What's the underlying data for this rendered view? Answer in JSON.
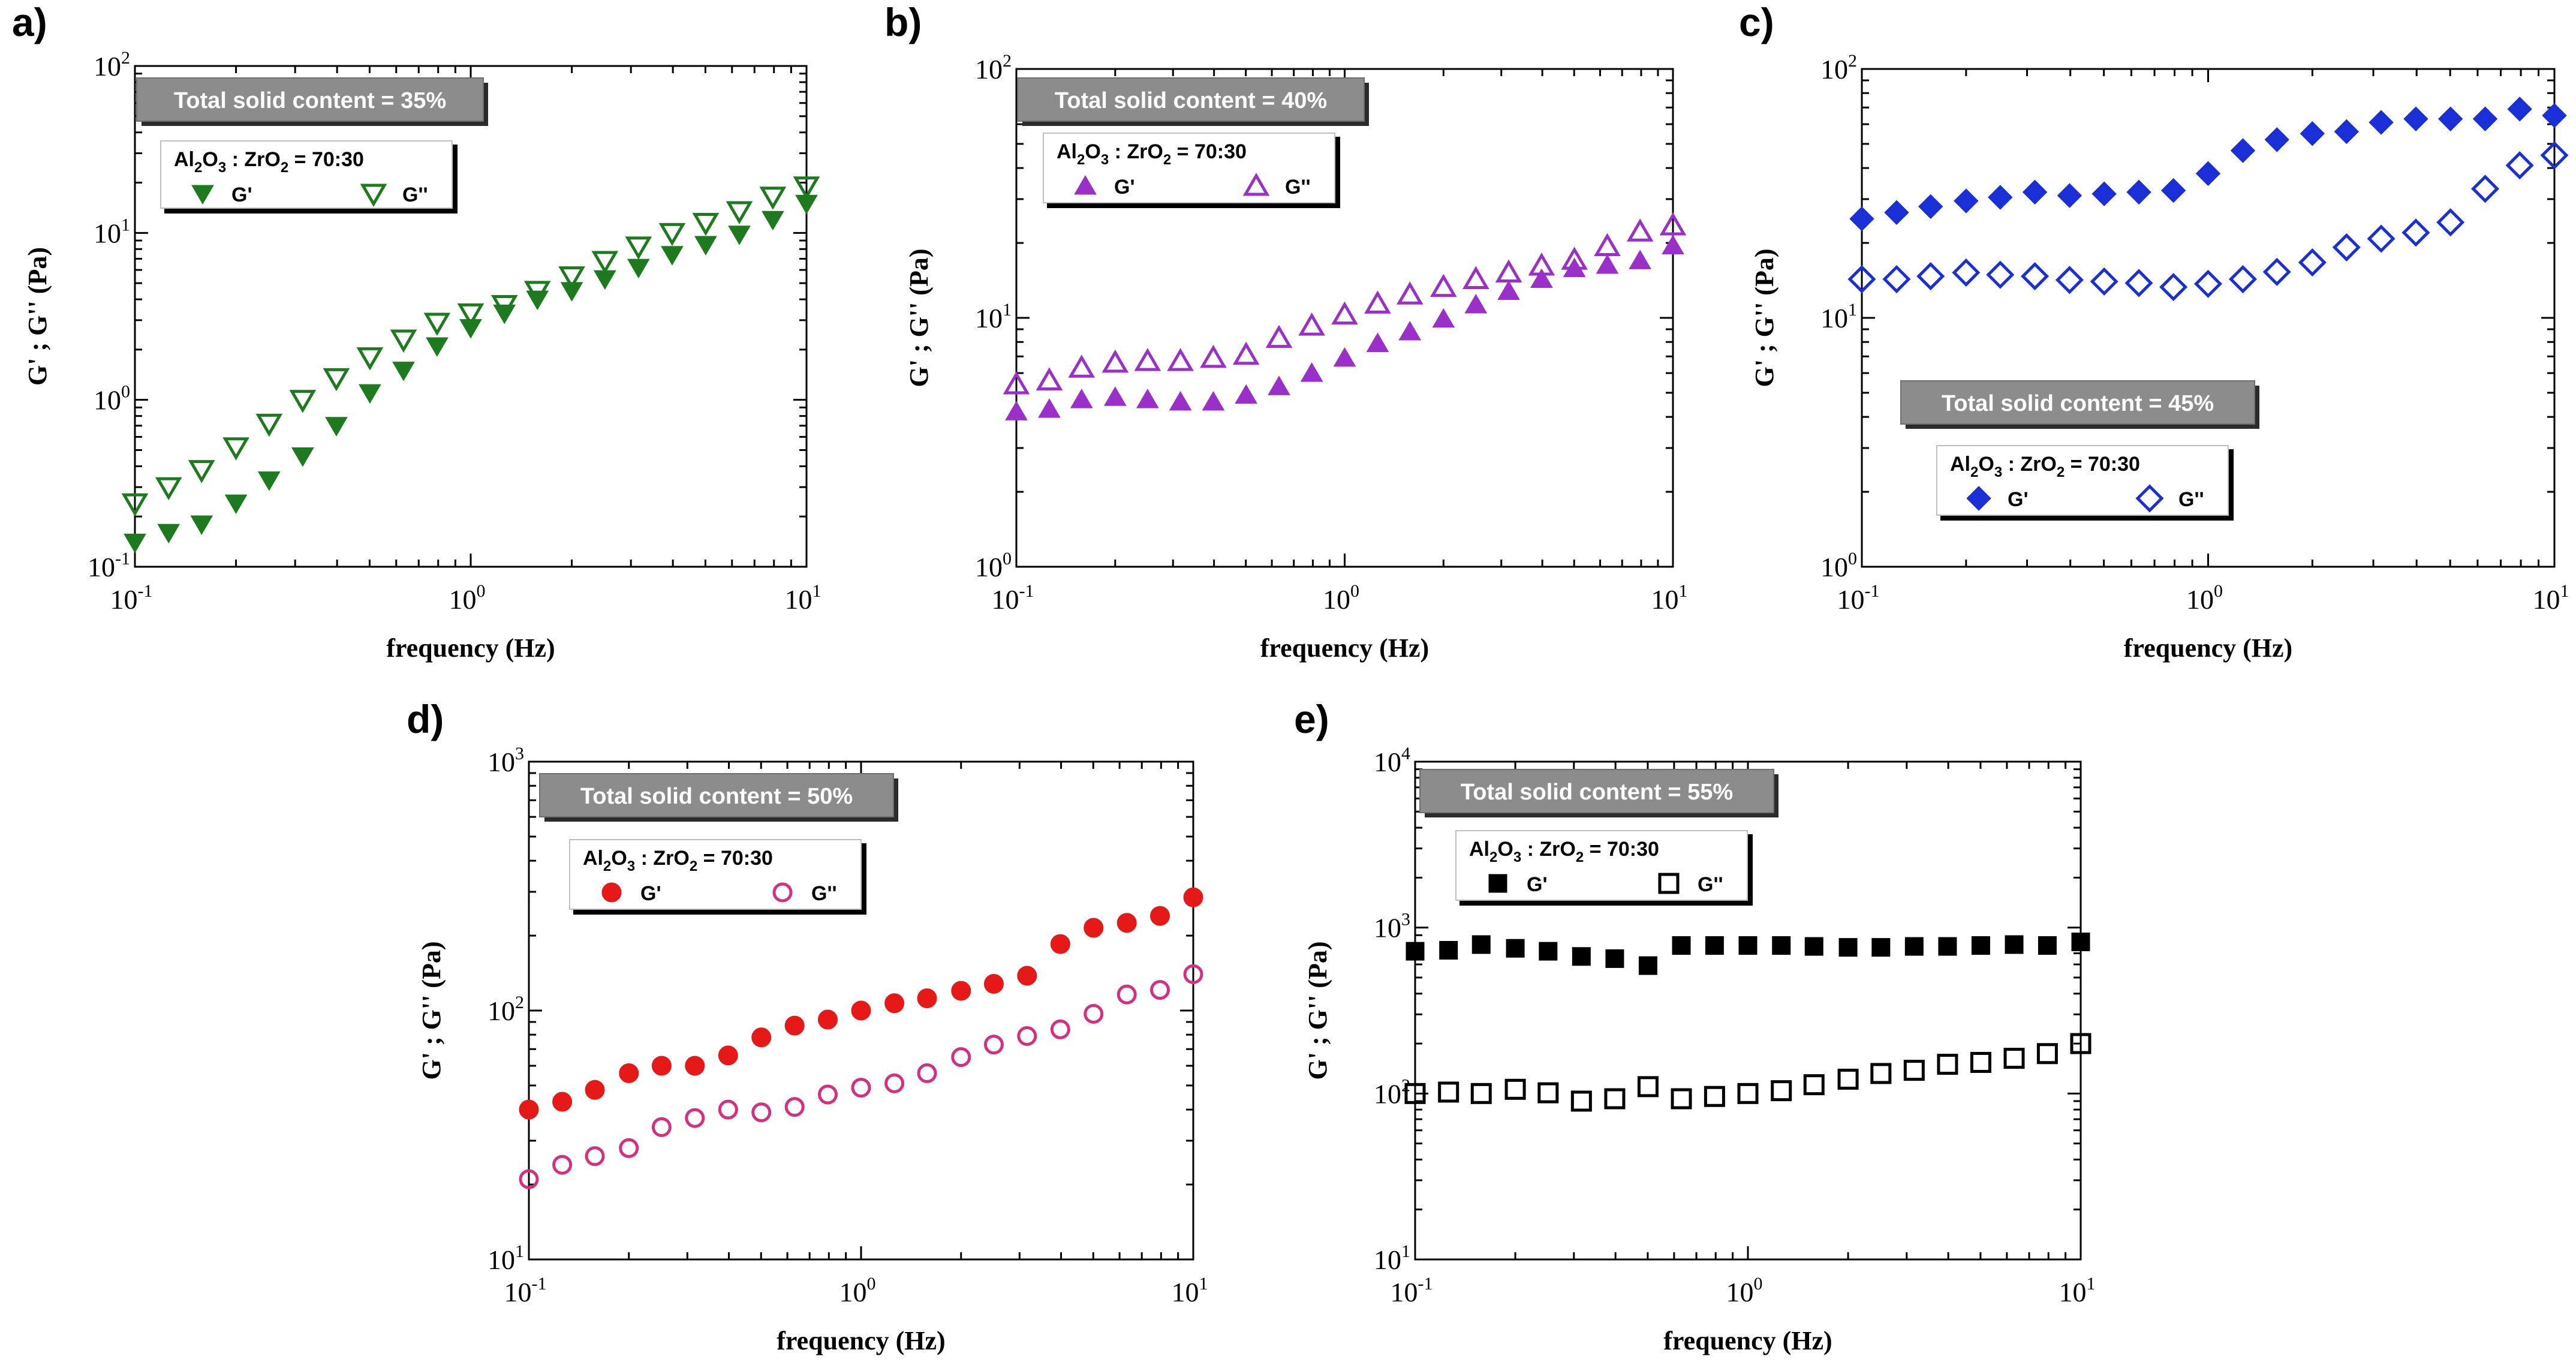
{
  "chart_data": [
    {
      "panel_label": "a)",
      "type": "scatter",
      "x_scale": "log",
      "y_scale": "log",
      "xlim": [
        0.1,
        10
      ],
      "ylim": [
        0.1,
        100
      ],
      "xlabel": "frequency   (Hz)",
      "ylabel": "G' ; G''   (Pa)",
      "x_ticks": [
        {
          "value": 0.1,
          "base": "10",
          "exp": "-1"
        },
        {
          "value": 1,
          "base": "10",
          "exp": "0"
        },
        {
          "value": 10,
          "base": "10",
          "exp": "1"
        }
      ],
      "y_ticks": [
        {
          "value": 0.1,
          "base": "10",
          "exp": "-1"
        },
        {
          "value": 1,
          "base": "10",
          "exp": "0"
        },
        {
          "value": 10,
          "base": "10",
          "exp": "1"
        },
        {
          "value": 100,
          "base": "10",
          "exp": "2"
        }
      ],
      "title_box": "Total solid content = 35%",
      "legend_title": {
        "p1": "Al",
        "s1": "2",
        "p2": "O",
        "s2": "3",
        "p3": " : ZrO",
        "s3": "2",
        "p4": " = 70:30"
      },
      "color": "#1e7a1e",
      "marker": "triangle-down",
      "x": [
        0.1,
        0.126,
        0.158,
        0.2,
        0.251,
        0.316,
        0.398,
        0.501,
        0.631,
        0.794,
        1.0,
        1.26,
        1.58,
        2.0,
        2.51,
        3.16,
        3.98,
        5.01,
        6.31,
        7.94,
        10.0
      ],
      "series": [
        {
          "name": "G'",
          "fill": "filled",
          "values": [
            0.14,
            0.16,
            0.18,
            0.24,
            0.33,
            0.46,
            0.7,
            1.1,
            1.5,
            2.1,
            2.7,
            3.3,
            4.0,
            4.5,
            5.3,
            6.2,
            7.4,
            8.5,
            9.8,
            12.0,
            15.0
          ]
        },
        {
          "name": "G''",
          "fill": "open",
          "values": [
            0.24,
            0.3,
            0.38,
            0.52,
            0.72,
            1.0,
            1.35,
            1.8,
            2.3,
            2.9,
            3.3,
            3.7,
            4.5,
            5.5,
            6.8,
            8.3,
            10.0,
            11.5,
            13.5,
            16.5,
            19.0
          ]
        }
      ]
    },
    {
      "panel_label": "b)",
      "type": "scatter",
      "x_scale": "log",
      "y_scale": "log",
      "xlim": [
        0.1,
        10
      ],
      "ylim": [
        1,
        100
      ],
      "xlabel": "frequency   (Hz)",
      "ylabel": "G' ; G''   (Pa)",
      "x_ticks": [
        {
          "value": 0.1,
          "base": "10",
          "exp": "-1"
        },
        {
          "value": 1,
          "base": "10",
          "exp": "0"
        },
        {
          "value": 10,
          "base": "10",
          "exp": "1"
        }
      ],
      "y_ticks": [
        {
          "value": 1,
          "base": "10",
          "exp": "0"
        },
        {
          "value": 10,
          "base": "10",
          "exp": "1"
        },
        {
          "value": 100,
          "base": "10",
          "exp": "2"
        }
      ],
      "title_box": "Total solid content = 40%",
      "legend_title": {
        "p1": "Al",
        "s1": "2",
        "p2": "O",
        "s2": "3",
        "p3": " : ZrO",
        "s3": "2",
        "p4": " = 70:30"
      },
      "color": "#9b30c8",
      "marker": "triangle-up",
      "x": [
        0.1,
        0.126,
        0.158,
        0.2,
        0.251,
        0.316,
        0.398,
        0.501,
        0.631,
        0.794,
        1.0,
        1.26,
        1.58,
        2.0,
        2.51,
        3.16,
        3.98,
        5.01,
        6.31,
        7.94,
        10.0
      ],
      "series": [
        {
          "name": "G'",
          "fill": "filled",
          "values": [
            4.2,
            4.3,
            4.7,
            4.8,
            4.7,
            4.6,
            4.6,
            4.9,
            5.3,
            6.0,
            6.9,
            7.9,
            8.8,
            9.9,
            11.3,
            12.8,
            14.3,
            15.8,
            16.3,
            17.0,
            19.5
          ]
        },
        {
          "name": "G''",
          "fill": "open",
          "values": [
            5.4,
            5.6,
            6.3,
            6.6,
            6.7,
            6.7,
            6.9,
            7.1,
            8.3,
            9.3,
            10.3,
            11.4,
            12.4,
            13.3,
            14.3,
            15.2,
            16.2,
            17.1,
            19.4,
            22.2,
            23.5
          ]
        }
      ]
    },
    {
      "panel_label": "c)",
      "type": "scatter",
      "x_scale": "log",
      "y_scale": "log",
      "xlim": [
        0.1,
        10
      ],
      "ylim": [
        1,
        100
      ],
      "xlabel": "frequency   (Hz)",
      "ylabel": "G' ; G''   (Pa)",
      "x_ticks": [
        {
          "value": 0.1,
          "base": "10",
          "exp": "-1"
        },
        {
          "value": 1,
          "base": "10",
          "exp": "0"
        },
        {
          "value": 10,
          "base": "10",
          "exp": "1"
        }
      ],
      "y_ticks": [
        {
          "value": 1,
          "base": "10",
          "exp": "0"
        },
        {
          "value": 10,
          "base": "10",
          "exp": "1"
        },
        {
          "value": 100,
          "base": "10",
          "exp": "2"
        }
      ],
      "title_box": "Total solid content = 45%",
      "legend_title": {
        "p1": "Al",
        "s1": "2",
        "p2": "O",
        "s2": "3",
        "p3": " : ZrO",
        "s3": "2",
        "p4": " = 70:30"
      },
      "color": "#1a2fd6",
      "marker": "diamond",
      "x": [
        0.1,
        0.126,
        0.158,
        0.2,
        0.251,
        0.316,
        0.398,
        0.501,
        0.631,
        0.794,
        1.0,
        1.26,
        1.58,
        2.0,
        2.51,
        3.16,
        3.98,
        5.01,
        6.31,
        7.94,
        10.0
      ],
      "series": [
        {
          "name": "G'",
          "fill": "filled",
          "values": [
            25,
            26.5,
            28,
            29.5,
            30.5,
            32,
            31,
            31.5,
            32,
            32.5,
            38,
            47,
            52,
            55,
            56,
            61,
            63,
            63,
            63,
            69,
            65
          ]
        },
        {
          "name": "G''",
          "fill": "open",
          "values": [
            14.3,
            14.3,
            14.7,
            15.2,
            14.9,
            14.7,
            14.2,
            14.0,
            13.8,
            13.3,
            13.7,
            14.3,
            15.3,
            16.7,
            19.2,
            20.8,
            22.0,
            24.2,
            33.0,
            41.0,
            45.0
          ]
        }
      ]
    },
    {
      "panel_label": "d)",
      "type": "scatter",
      "x_scale": "log",
      "y_scale": "log",
      "xlim": [
        0.1,
        10
      ],
      "ylim": [
        10,
        1000
      ],
      "xlabel": "frequency   (Hz)",
      "ylabel": "G' ; G''   (Pa)",
      "x_ticks": [
        {
          "value": 0.1,
          "base": "10",
          "exp": "-1"
        },
        {
          "value": 1,
          "base": "10",
          "exp": "0"
        },
        {
          "value": 10,
          "base": "10",
          "exp": "1"
        }
      ],
      "y_ticks": [
        {
          "value": 10,
          "base": "10",
          "exp": "1"
        },
        {
          "value": 100,
          "base": "10",
          "exp": "2"
        },
        {
          "value": 1000,
          "base": "10",
          "exp": "3"
        }
      ],
      "title_box": "Total solid content = 50%",
      "legend_title": {
        "p1": "Al",
        "s1": "2",
        "p2": "O",
        "s2": "3",
        "p3": " : ZrO",
        "s3": "2",
        "p4": " = 70:30"
      },
      "color": "#e61919",
      "color_open": "#d4307f",
      "marker": "circle",
      "x": [
        0.1,
        0.126,
        0.158,
        0.2,
        0.251,
        0.316,
        0.398,
        0.501,
        0.631,
        0.794,
        1.0,
        1.26,
        1.58,
        2.0,
        2.51,
        3.16,
        3.98,
        5.01,
        6.31,
        7.94,
        10.0
      ],
      "series": [
        {
          "name": "G'",
          "fill": "filled",
          "values": [
            40,
            43,
            48,
            56,
            60,
            60,
            66,
            78,
            87,
            92,
            100,
            107,
            112,
            120,
            128,
            138,
            185,
            215,
            225,
            240,
            285
          ]
        },
        {
          "name": "G''",
          "fill": "open",
          "values": [
            21,
            24,
            26,
            28,
            34,
            37,
            40,
            39,
            41,
            46,
            49,
            51,
            56,
            65,
            73,
            79,
            84,
            97,
            116,
            121,
            140
          ]
        }
      ]
    },
    {
      "panel_label": "e)",
      "type": "scatter",
      "x_scale": "log",
      "y_scale": "log",
      "xlim": [
        0.1,
        10
      ],
      "ylim": [
        10,
        10000
      ],
      "xlabel": "frequency   (Hz)",
      "ylabel": "G' ; G''   (Pa)",
      "x_ticks": [
        {
          "value": 0.1,
          "base": "10",
          "exp": "-1"
        },
        {
          "value": 1,
          "base": "10",
          "exp": "0"
        },
        {
          "value": 10,
          "base": "10",
          "exp": "1"
        }
      ],
      "y_ticks": [
        {
          "value": 10,
          "base": "10",
          "exp": "1"
        },
        {
          "value": 100,
          "base": "10",
          "exp": "2"
        },
        {
          "value": 1000,
          "base": "10",
          "exp": "3"
        },
        {
          "value": 10000,
          "base": "10",
          "exp": "4"
        }
      ],
      "title_box": "Total solid content = 55%",
      "legend_title": {
        "p1": "Al",
        "s1": "2",
        "p2": "O",
        "s2": "3",
        "p3": " : ZrO",
        "s3": "2",
        "p4": " = 70:30"
      },
      "color": "#000000",
      "marker": "square",
      "x": [
        0.1,
        0.126,
        0.158,
        0.2,
        0.251,
        0.316,
        0.398,
        0.501,
        0.631,
        0.794,
        1.0,
        1.26,
        1.58,
        2.0,
        2.51,
        3.16,
        3.98,
        5.01,
        6.31,
        7.94,
        10.0
      ],
      "series": [
        {
          "name": "G'",
          "fill": "filled",
          "values": [
            720,
            730,
            790,
            750,
            720,
            670,
            650,
            590,
            780,
            780,
            780,
            780,
            770,
            760,
            760,
            770,
            770,
            780,
            790,
            780,
            820
          ]
        },
        {
          "name": "G''",
          "fill": "open",
          "values": [
            100,
            102,
            100,
            106,
            101,
            90,
            93,
            110,
            93,
            96,
            100,
            104,
            113,
            122,
            132,
            138,
            150,
            154,
            163,
            174,
            200
          ]
        }
      ]
    }
  ]
}
